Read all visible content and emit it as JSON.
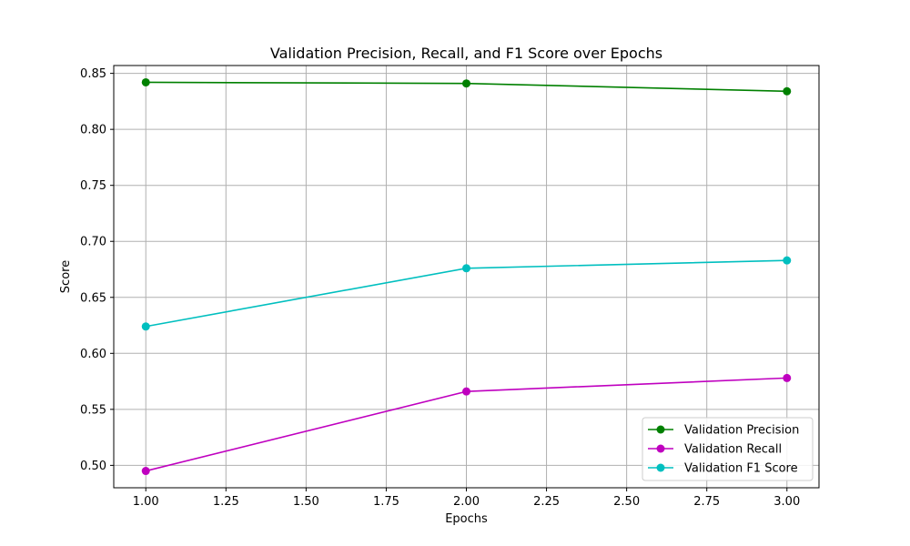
{
  "chart_data": {
    "type": "line",
    "title": "Validation Precision, Recall, and F1 Score over Epochs",
    "xlabel": "Epochs",
    "ylabel": "Score",
    "x": [
      1,
      2,
      3
    ],
    "xlim": [
      0.9,
      3.1
    ],
    "ylim": [
      0.48,
      0.857
    ],
    "xticks": [
      "1.00",
      "1.25",
      "1.50",
      "1.75",
      "2.00",
      "2.25",
      "2.50",
      "2.75",
      "3.00"
    ],
    "yticks": [
      "0.50",
      "0.55",
      "0.60",
      "0.65",
      "0.70",
      "0.75",
      "0.80",
      "0.85"
    ],
    "grid": true,
    "legend_position": "lower-right",
    "series": [
      {
        "name": "Validation Precision",
        "color": "#008000",
        "values": [
          0.842,
          0.841,
          0.834
        ]
      },
      {
        "name": "Validation Recall",
        "color": "#bf00bf",
        "values": [
          0.495,
          0.566,
          0.578
        ]
      },
      {
        "name": "Validation F1 Score",
        "color": "#00bfbf",
        "values": [
          0.624,
          0.676,
          0.683
        ]
      }
    ]
  }
}
